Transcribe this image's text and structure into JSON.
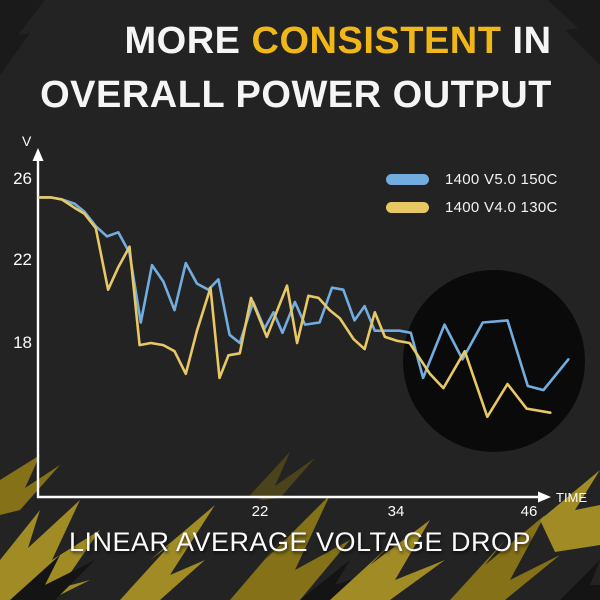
{
  "title": {
    "line1_pre": "MORE ",
    "line1_highlight": "CONSISTENT",
    "line1_post": " IN",
    "line2": "OVERALL POWER OUTPUT",
    "highlight_color": "#f0b718"
  },
  "legend": [
    {
      "label": "1400 V5.0 150C",
      "color": "#73ade0"
    },
    {
      "label": "1400 V4.0 130C",
      "color": "#e8c865"
    }
  ],
  "axes": {
    "y_unit": "V",
    "x_unit": "TIME",
    "y_ticks": [
      "26",
      "22",
      "18"
    ],
    "x_ticks": [
      "22",
      "34",
      "46"
    ]
  },
  "caption": "LINEAR AVERAGE VOLTAGE DROP",
  "colors": {
    "background": "#232323",
    "axis": "#ffffff",
    "highlight_circle": "#0a0a0a",
    "bolt_olive": "#a18b24",
    "bolt_olive_dark": "#847118",
    "bolt_black": "#141414"
  },
  "chart_data": {
    "type": "line",
    "title": "MORE CONSISTENT IN OVERALL POWER OUTPUT",
    "subtitle": "LINEAR AVERAGE VOLTAGE DROP",
    "xlabel": "TIME",
    "ylabel": "V",
    "x_ticks": [
      22,
      34,
      46
    ],
    "y_ticks": [
      26,
      22,
      18
    ],
    "x_range_shown": [
      2,
      50
    ],
    "y_range_shown": [
      13,
      27
    ],
    "grid": false,
    "legend_position": "top-right",
    "highlight": {
      "shape": "circle",
      "center_time": 42.8,
      "center_v": 17.1,
      "radius_time": 8.1
    },
    "series": [
      {
        "name": "1400 V5.0 150C",
        "color": "#73ade0",
        "points": [
          [
            2.4,
            25.1
          ],
          [
            3.4,
            25.1
          ],
          [
            4.4,
            25.0
          ],
          [
            5.5,
            24.8
          ],
          [
            6.4,
            24.4
          ],
          [
            7.4,
            23.7
          ],
          [
            8.4,
            23.2
          ],
          [
            9.4,
            23.4
          ],
          [
            10.4,
            22.4
          ],
          [
            11.4,
            19.0
          ],
          [
            12.4,
            21.8
          ],
          [
            13.4,
            21.0
          ],
          [
            14.4,
            19.6
          ],
          [
            15.4,
            21.9
          ],
          [
            16.4,
            20.9
          ],
          [
            17.4,
            20.6
          ],
          [
            18.3,
            21.1
          ],
          [
            19.3,
            18.4
          ],
          [
            20.2,
            18.0
          ],
          [
            21.4,
            20.0
          ],
          [
            22.4,
            18.7
          ],
          [
            23.2,
            19.5
          ],
          [
            24.0,
            18.5
          ],
          [
            25.1,
            20.0
          ],
          [
            26.0,
            18.9
          ],
          [
            27.3,
            19.0
          ],
          [
            28.4,
            20.7
          ],
          [
            29.4,
            20.6
          ],
          [
            30.4,
            19.1
          ],
          [
            31.3,
            19.8
          ],
          [
            32.2,
            18.6
          ],
          [
            33.3,
            18.6
          ],
          [
            34.4,
            18.6
          ],
          [
            35.4,
            18.5
          ],
          [
            36.5,
            16.3
          ],
          [
            38.4,
            18.9
          ],
          [
            40.0,
            17.2
          ],
          [
            41.8,
            19.0
          ],
          [
            44.0,
            19.1
          ],
          [
            45.8,
            15.9
          ],
          [
            47.2,
            15.7
          ],
          [
            49.4,
            17.2
          ]
        ]
      },
      {
        "name": "1400 V4.0 130C",
        "color": "#e8c865",
        "points": [
          [
            2.4,
            25.1
          ],
          [
            3.4,
            25.1
          ],
          [
            4.4,
            25.0
          ],
          [
            5.5,
            24.6
          ],
          [
            6.4,
            24.3
          ],
          [
            7.4,
            23.6
          ],
          [
            8.5,
            20.6
          ],
          [
            9.4,
            21.7
          ],
          [
            10.4,
            22.7
          ],
          [
            11.3,
            17.9
          ],
          [
            12.3,
            18.0
          ],
          [
            13.4,
            17.9
          ],
          [
            14.4,
            17.6
          ],
          [
            15.4,
            16.5
          ],
          [
            16.4,
            18.6
          ],
          [
            17.6,
            20.7
          ],
          [
            18.4,
            16.3
          ],
          [
            19.2,
            17.4
          ],
          [
            20.2,
            17.5
          ],
          [
            21.2,
            20.2
          ],
          [
            22.6,
            18.3
          ],
          [
            24.4,
            20.8
          ],
          [
            25.3,
            18.0
          ],
          [
            26.3,
            20.3
          ],
          [
            27.2,
            20.2
          ],
          [
            28.2,
            19.6
          ],
          [
            29.1,
            19.2
          ],
          [
            30.3,
            18.2
          ],
          [
            31.3,
            17.7
          ],
          [
            32.2,
            19.5
          ],
          [
            33.1,
            18.3
          ],
          [
            34.2,
            18.1
          ],
          [
            35.3,
            18.0
          ],
          [
            37.1,
            16.5
          ],
          [
            38.3,
            15.8
          ],
          [
            40.2,
            17.6
          ],
          [
            42.2,
            14.4
          ],
          [
            44.0,
            16.0
          ],
          [
            45.7,
            14.8
          ],
          [
            47.8,
            14.6
          ]
        ]
      }
    ]
  }
}
